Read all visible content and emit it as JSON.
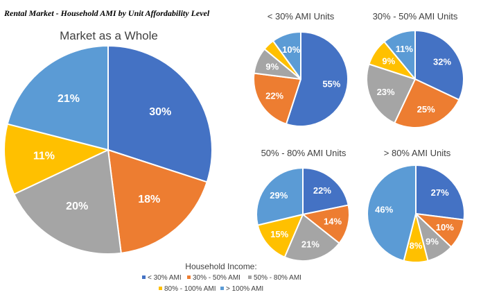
{
  "title": "Rental Market - Household AMI by Unit Affordability Level",
  "colors": {
    "lt30": "#4472C4",
    "30to50": "#ED7D31",
    "50to80": "#A5A5A5",
    "80to100": "#FFC000",
    "gt100": "#5B9BD5"
  },
  "legend": {
    "title": "Household Income:",
    "items": [
      {
        "key": "lt30",
        "label": "< 30% AMI"
      },
      {
        "key": "30to50",
        "label": "30% - 50% AMI"
      },
      {
        "key": "50to80",
        "label": "50% - 80% AMI"
      },
      {
        "key": "80to100",
        "label": "80% - 100% AMI"
      },
      {
        "key": "gt100",
        "label": "> 100% AMI"
      }
    ]
  },
  "chart_data": [
    {
      "type": "pie",
      "title": "Market as a Whole",
      "categories": [
        "< 30% AMI",
        "30% - 50% AMI",
        "50% - 80% AMI",
        "80% - 100% AMI",
        "> 100% AMI"
      ],
      "values": [
        30,
        18,
        20,
        11,
        21
      ],
      "labels": [
        "30%",
        "18%",
        "20%",
        "11%",
        "21%"
      ]
    },
    {
      "type": "pie",
      "title": "< 30% AMI Units",
      "categories": [
        "< 30% AMI",
        "30% - 50% AMI",
        "50% - 80% AMI",
        "80% - 100% AMI",
        "> 100% AMI"
      ],
      "values": [
        55,
        22,
        9,
        4,
        10
      ],
      "labels": [
        "55%",
        "22%",
        "9%",
        "",
        "10%"
      ]
    },
    {
      "type": "pie",
      "title": "30% - 50% AMI Units",
      "categories": [
        "< 30% AMI",
        "30% - 50% AMI",
        "50% - 80% AMI",
        "80% - 100% AMI",
        "> 100% AMI"
      ],
      "values": [
        32,
        25,
        23,
        9,
        11
      ],
      "labels": [
        "32%",
        "25%",
        "23%",
        "9%",
        "11%"
      ]
    },
    {
      "type": "pie",
      "title": "50% - 80% AMI Units",
      "categories": [
        "< 30% AMI",
        "30% - 50% AMI",
        "50% - 80% AMI",
        "80% - 100% AMI",
        "> 100% AMI"
      ],
      "values": [
        22,
        14,
        21,
        15,
        29
      ],
      "labels": [
        "22%",
        "14%",
        "21%",
        "15%",
        "29%"
      ]
    },
    {
      "type": "pie",
      "title": "> 80% AMI Units",
      "categories": [
        "< 30% AMI",
        "30% - 50% AMI",
        "50% - 80% AMI",
        "80% - 100% AMI",
        "> 100% AMI"
      ],
      "values": [
        27,
        10,
        9,
        8,
        46
      ],
      "labels": [
        "27%",
        "10%",
        "9%",
        "8%",
        "46%"
      ]
    }
  ]
}
